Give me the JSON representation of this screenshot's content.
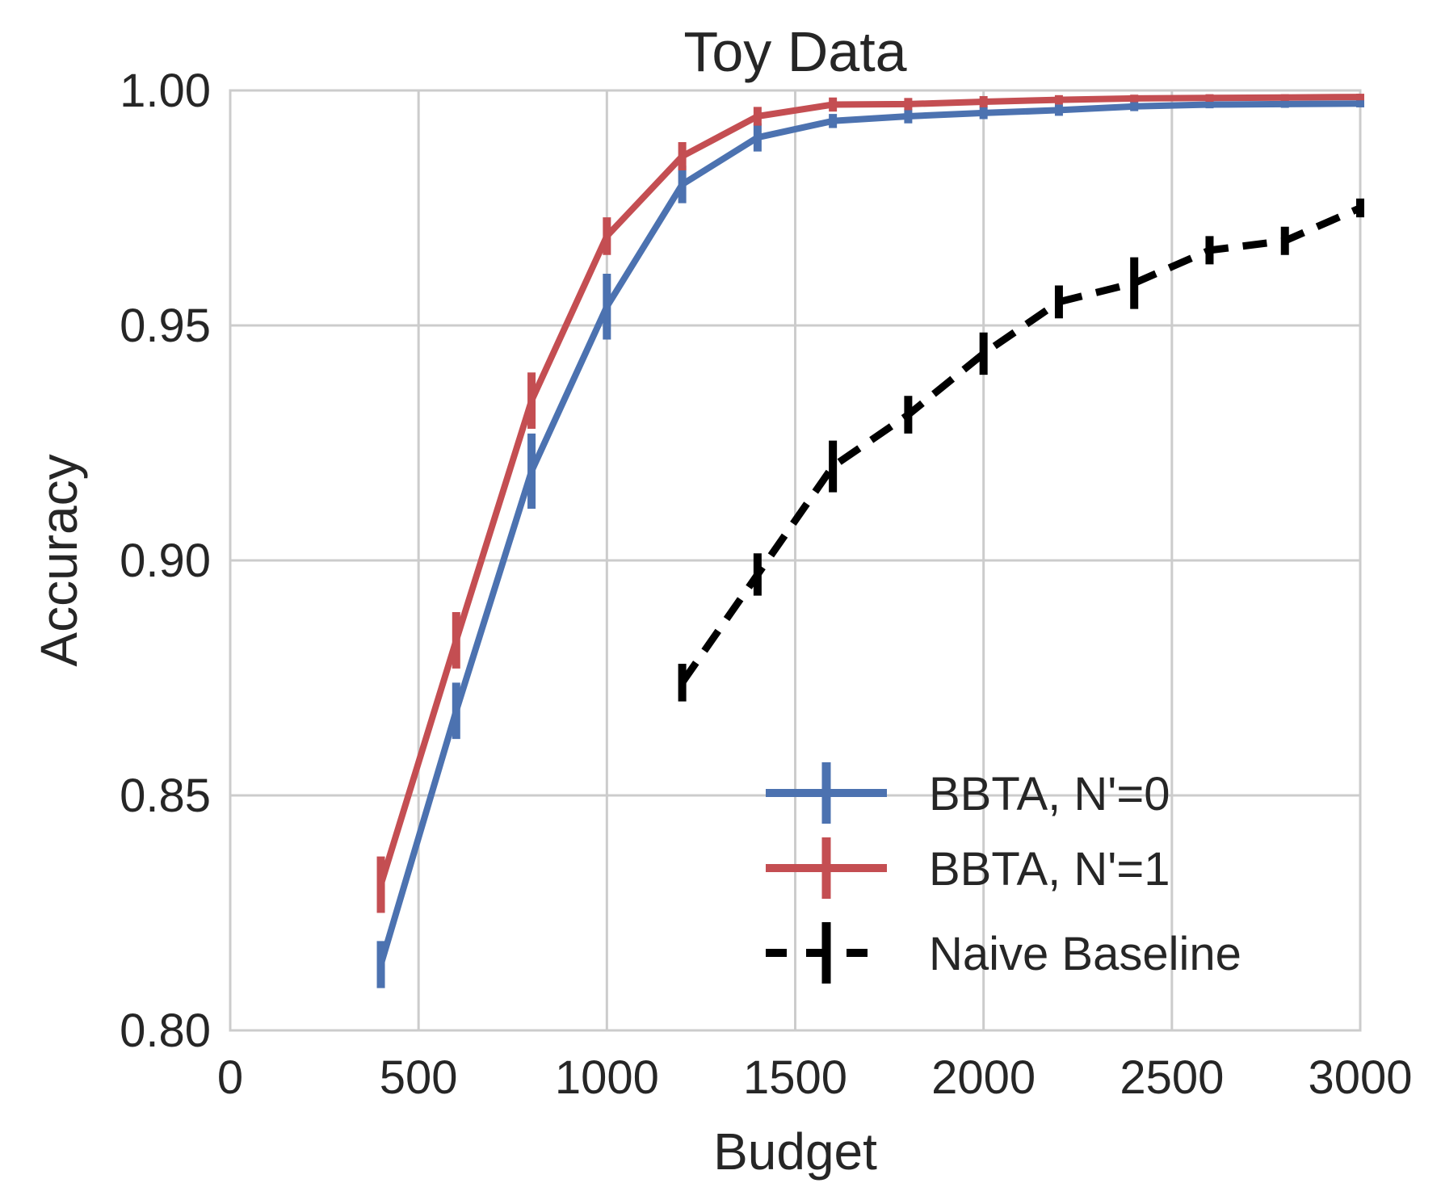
{
  "chart_data": {
    "type": "line",
    "title": "Toy Data",
    "xlabel": "Budget",
    "ylabel": "Accuracy",
    "xlim": [
      0,
      3000
    ],
    "ylim": [
      0.8,
      1.0
    ],
    "xticks": [
      0,
      500,
      1000,
      1500,
      2000,
      2500,
      3000
    ],
    "xtick_labels": [
      "0",
      "500",
      "1000",
      "1500",
      "2000",
      "2500",
      "3000"
    ],
    "yticks": [
      0.8,
      0.85,
      0.9,
      0.95,
      1.0
    ],
    "ytick_labels": [
      "0.80",
      "0.85",
      "0.90",
      "0.95",
      "1.00"
    ],
    "grid": true,
    "legend_position": "lower-right",
    "series": [
      {
        "name": "BBTA, N'=0",
        "color": "#4c72b0",
        "style": "solid",
        "x": [
          400,
          600,
          800,
          1000,
          1200,
          1400,
          1600,
          1800,
          2000,
          2200,
          2400,
          2600,
          2800,
          3000
        ],
        "y": [
          0.814,
          0.868,
          0.919,
          0.954,
          0.98,
          0.99,
          0.9935,
          0.9945,
          0.9952,
          0.9958,
          0.9966,
          0.997,
          0.9971,
          0.9972
        ],
        "err": [
          0.005,
          0.006,
          0.008,
          0.007,
          0.004,
          0.003,
          0.0015,
          0.0015,
          0.0013,
          0.0012,
          0.001,
          0.0008,
          0.0008,
          0.0008
        ]
      },
      {
        "name": "BBTA, N'=1",
        "color": "#c44e52",
        "style": "solid",
        "x": [
          400,
          600,
          800,
          1000,
          1200,
          1400,
          1600,
          1800,
          2000,
          2200,
          2400,
          2600,
          2800,
          3000
        ],
        "y": [
          0.831,
          0.883,
          0.934,
          0.969,
          0.986,
          0.9945,
          0.997,
          0.9971,
          0.9976,
          0.998,
          0.9983,
          0.9984,
          0.9985,
          0.9986
        ],
        "err": [
          0.006,
          0.006,
          0.006,
          0.004,
          0.003,
          0.002,
          0.0015,
          0.0013,
          0.0012,
          0.001,
          0.0008,
          0.0008,
          0.0007,
          0.0007
        ]
      },
      {
        "name": "Naive Baseline",
        "color": "#000000",
        "style": "dashed",
        "x": [
          1200,
          1400,
          1600,
          1800,
          2000,
          2200,
          2400,
          2600,
          2800,
          3000
        ],
        "y": [
          0.874,
          0.897,
          0.92,
          0.931,
          0.944,
          0.955,
          0.959,
          0.966,
          0.968,
          0.975
        ],
        "err": [
          0.004,
          0.0045,
          0.0055,
          0.004,
          0.0045,
          0.0035,
          0.0055,
          0.003,
          0.003,
          0.002
        ]
      }
    ]
  }
}
